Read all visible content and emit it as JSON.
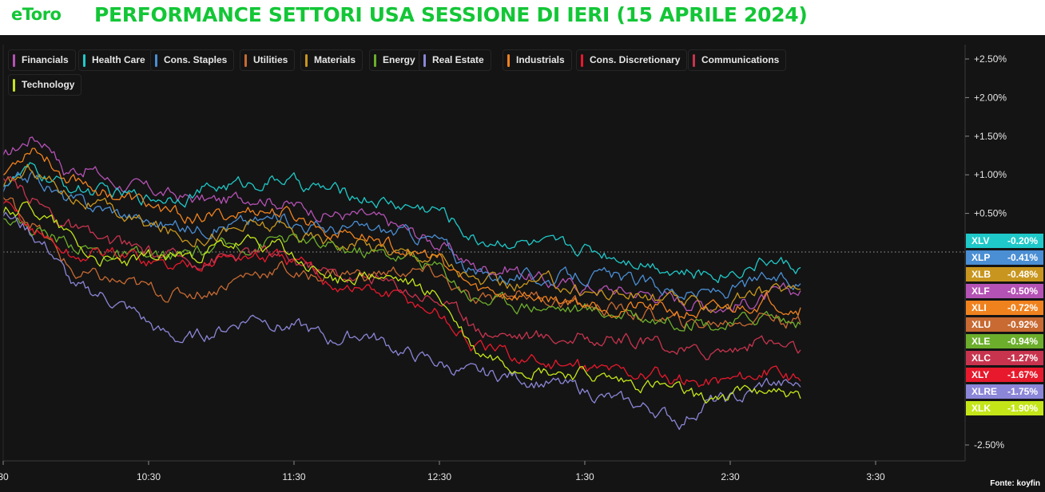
{
  "header": {
    "logo": "eToro",
    "title": "PERFORMANCE SETTORI USA SESSIONE DI IERI (15 APRILE 2024)"
  },
  "source": "Fonte: koyfin",
  "chart_data": {
    "type": "line",
    "title": "PERFORMANCE SETTORI USA SESSIONE DI IERI (15 APRILE 2024)",
    "x_axis": {
      "ticks": [
        "30",
        "10:30",
        "11:30",
        "12:30",
        "1:30",
        "2:30",
        "3:30"
      ],
      "range": [
        "9:30",
        "3:59"
      ]
    },
    "y_axis": {
      "ticks": [
        "+2.50%",
        "+2.00%",
        "+1.50%",
        "+1.00%",
        "+0.50%",
        "-2.50%"
      ],
      "range": [
        -2.7,
        2.6
      ],
      "unit": "%",
      "reference_line": 0
    },
    "legend_placement": "top-left",
    "series": [
      {
        "name": "Financials",
        "ticker": "XLF",
        "color": "#b552b5",
        "end_label": "-0.50%",
        "end": -0.5,
        "keypoints": [
          [
            0,
            1.2
          ],
          [
            12,
            1.5
          ],
          [
            20,
            1.4
          ],
          [
            25,
            1.05
          ],
          [
            35,
            1.1
          ],
          [
            45,
            0.9
          ],
          [
            60,
            0.8
          ],
          [
            75,
            0.7
          ],
          [
            90,
            0.65
          ],
          [
            105,
            0.75
          ],
          [
            120,
            0.6
          ],
          [
            135,
            0.5
          ],
          [
            150,
            0.45
          ],
          [
            165,
            0.3
          ],
          [
            180,
            0.1
          ],
          [
            195,
            -0.2
          ],
          [
            210,
            -0.2
          ],
          [
            225,
            -0.4
          ],
          [
            240,
            -0.45
          ],
          [
            255,
            -0.5
          ],
          [
            270,
            -0.55
          ],
          [
            285,
            -0.65
          ],
          [
            300,
            -0.7
          ],
          [
            315,
            -0.6
          ],
          [
            329,
            -0.5
          ]
        ]
      },
      {
        "name": "Health Care",
        "ticker": "XLV",
        "color": "#1fc9c9",
        "end_label": "-0.20%",
        "end": -0.2,
        "keypoints": [
          [
            0,
            0.9
          ],
          [
            12,
            1.05
          ],
          [
            25,
            0.85
          ],
          [
            35,
            0.8
          ],
          [
            45,
            0.75
          ],
          [
            60,
            0.7
          ],
          [
            75,
            0.75
          ],
          [
            90,
            0.85
          ],
          [
            105,
            0.9
          ],
          [
            115,
            0.95
          ],
          [
            125,
            0.85
          ],
          [
            135,
            0.8
          ],
          [
            150,
            0.7
          ],
          [
            165,
            0.6
          ],
          [
            180,
            0.55
          ],
          [
            195,
            0.15
          ],
          [
            210,
            0.15
          ],
          [
            225,
            0.05
          ],
          [
            240,
            0.05
          ],
          [
            255,
            -0.05
          ],
          [
            270,
            -0.15
          ],
          [
            285,
            -0.3
          ],
          [
            300,
            -0.25
          ],
          [
            315,
            -0.1
          ],
          [
            329,
            -0.2
          ]
        ]
      },
      {
        "name": "Cons. Staples",
        "ticker": "XLP",
        "color": "#4a8ed4",
        "end_label": "-0.41%",
        "end": -0.41,
        "keypoints": [
          [
            0,
            0.8
          ],
          [
            12,
            1.0
          ],
          [
            25,
            0.7
          ],
          [
            35,
            0.6
          ],
          [
            45,
            0.55
          ],
          [
            60,
            0.4
          ],
          [
            75,
            0.3
          ],
          [
            90,
            0.35
          ],
          [
            105,
            0.4
          ],
          [
            115,
            0.45
          ],
          [
            125,
            0.35
          ],
          [
            135,
            0.3
          ],
          [
            150,
            0.3
          ],
          [
            165,
            0.25
          ],
          [
            180,
            0.15
          ],
          [
            195,
            -0.3
          ],
          [
            210,
            -0.3
          ],
          [
            225,
            -0.35
          ],
          [
            240,
            -0.3
          ],
          [
            255,
            -0.35
          ],
          [
            270,
            -0.45
          ],
          [
            285,
            -0.55
          ],
          [
            300,
            -0.5
          ],
          [
            315,
            -0.35
          ],
          [
            329,
            -0.41
          ]
        ]
      },
      {
        "name": "Utilities",
        "ticker": "XLU",
        "color": "#c86a32",
        "end_label": "-0.92%",
        "end": -0.92,
        "keypoints": [
          [
            0,
            0.7
          ],
          [
            12,
            0.4
          ],
          [
            22,
            0.0
          ],
          [
            30,
            -0.3
          ],
          [
            40,
            -0.35
          ],
          [
            55,
            -0.45
          ],
          [
            70,
            -0.55
          ],
          [
            85,
            -0.5
          ],
          [
            100,
            -0.3
          ],
          [
            115,
            -0.2
          ],
          [
            125,
            -0.35
          ],
          [
            135,
            -0.25
          ],
          [
            150,
            -0.3
          ],
          [
            165,
            -0.25
          ],
          [
            180,
            -0.3
          ],
          [
            195,
            -0.7
          ],
          [
            210,
            -0.5
          ],
          [
            225,
            -0.6
          ],
          [
            240,
            -0.7
          ],
          [
            255,
            -0.75
          ],
          [
            270,
            -0.85
          ],
          [
            285,
            -0.95
          ],
          [
            300,
            -0.9
          ],
          [
            315,
            -0.8
          ],
          [
            329,
            -0.92
          ]
        ]
      },
      {
        "name": "Materials",
        "ticker": "XLB",
        "color": "#c8961e",
        "end_label": "-0.48%",
        "end": -0.48,
        "keypoints": [
          [
            0,
            0.8
          ],
          [
            12,
            1.1
          ],
          [
            25,
            0.8
          ],
          [
            35,
            0.65
          ],
          [
            45,
            0.5
          ],
          [
            60,
            0.35
          ],
          [
            75,
            0.2
          ],
          [
            90,
            0.25
          ],
          [
            105,
            0.35
          ],
          [
            115,
            0.3
          ],
          [
            125,
            0.2
          ],
          [
            135,
            0.15
          ],
          [
            150,
            0.1
          ],
          [
            165,
            0.0
          ],
          [
            180,
            -0.05
          ],
          [
            195,
            -0.4
          ],
          [
            210,
            -0.45
          ],
          [
            225,
            -0.4
          ],
          [
            240,
            -0.5
          ],
          [
            255,
            -0.55
          ],
          [
            270,
            -0.6
          ],
          [
            285,
            -0.7
          ],
          [
            300,
            -0.65
          ],
          [
            315,
            -0.5
          ],
          [
            329,
            -0.48
          ]
        ]
      },
      {
        "name": "Energy",
        "ticker": "XLE",
        "color": "#6cae2c",
        "end_label": "-0.94%",
        "end": -0.94,
        "keypoints": [
          [
            0,
            0.5
          ],
          [
            12,
            0.3
          ],
          [
            25,
            0.15
          ],
          [
            35,
            0.05
          ],
          [
            45,
            -0.05
          ],
          [
            60,
            -0.1
          ],
          [
            75,
            -0.05
          ],
          [
            90,
            0.05
          ],
          [
            105,
            0.1
          ],
          [
            115,
            0.2
          ],
          [
            125,
            0.1
          ],
          [
            135,
            0.05
          ],
          [
            150,
            0.0
          ],
          [
            165,
            -0.05
          ],
          [
            180,
            -0.2
          ],
          [
            195,
            -0.6
          ],
          [
            210,
            -0.65
          ],
          [
            225,
            -0.7
          ],
          [
            240,
            -0.75
          ],
          [
            255,
            -0.8
          ],
          [
            270,
            -0.85
          ],
          [
            285,
            -0.9
          ],
          [
            300,
            -0.95
          ],
          [
            315,
            -0.8
          ],
          [
            329,
            -0.94
          ]
        ]
      },
      {
        "name": "Real Estate",
        "ticker": "XLRE",
        "color": "#8b86d8",
        "end_label": "-1.75%",
        "end": -1.75,
        "keypoints": [
          [
            0,
            0.5
          ],
          [
            10,
            0.3
          ],
          [
            20,
            0.0
          ],
          [
            30,
            -0.5
          ],
          [
            40,
            -0.55
          ],
          [
            55,
            -0.8
          ],
          [
            65,
            -1.05
          ],
          [
            75,
            -1.15
          ],
          [
            90,
            -1.0
          ],
          [
            105,
            -0.8
          ],
          [
            115,
            -0.95
          ],
          [
            125,
            -1.0
          ],
          [
            135,
            -1.15
          ],
          [
            150,
            -1.05
          ],
          [
            165,
            -1.3
          ],
          [
            180,
            -1.45
          ],
          [
            195,
            -1.6
          ],
          [
            210,
            -1.6
          ],
          [
            225,
            -1.7
          ],
          [
            240,
            -1.8
          ],
          [
            255,
            -1.95
          ],
          [
            270,
            -2.05
          ],
          [
            280,
            -2.2
          ],
          [
            290,
            -1.95
          ],
          [
            305,
            -1.9
          ],
          [
            315,
            -1.7
          ],
          [
            329,
            -1.75
          ]
        ]
      },
      {
        "name": "Industrials",
        "ticker": "XLI",
        "color": "#f0821e",
        "end_label": "-0.72%",
        "end": -0.72,
        "keypoints": [
          [
            0,
            1.0
          ],
          [
            12,
            1.4
          ],
          [
            25,
            1.0
          ],
          [
            35,
            0.9
          ],
          [
            45,
            0.75
          ],
          [
            60,
            0.6
          ],
          [
            75,
            0.45
          ],
          [
            90,
            0.45
          ],
          [
            105,
            0.55
          ],
          [
            115,
            0.5
          ],
          [
            125,
            0.4
          ],
          [
            135,
            0.3
          ],
          [
            150,
            0.2
          ],
          [
            165,
            0.05
          ],
          [
            180,
            -0.1
          ],
          [
            195,
            -0.5
          ],
          [
            210,
            -0.55
          ],
          [
            225,
            -0.6
          ],
          [
            240,
            -0.65
          ],
          [
            255,
            -0.7
          ],
          [
            270,
            -0.75
          ],
          [
            285,
            -0.8
          ],
          [
            300,
            -0.75
          ],
          [
            315,
            -0.6
          ],
          [
            329,
            -0.72
          ]
        ]
      },
      {
        "name": "Cons. Discretionary",
        "ticker": "XLY",
        "color": "#e8192c",
        "end_label": "-1.67%",
        "end": -1.67,
        "keypoints": [
          [
            0,
            0.6
          ],
          [
            12,
            0.3
          ],
          [
            22,
            0.1
          ],
          [
            30,
            -0.1
          ],
          [
            40,
            0.0
          ],
          [
            55,
            -0.05
          ],
          [
            70,
            -0.2
          ],
          [
            85,
            -0.1
          ],
          [
            100,
            -0.05
          ],
          [
            115,
            -0.1
          ],
          [
            125,
            -0.2
          ],
          [
            135,
            -0.4
          ],
          [
            150,
            -0.5
          ],
          [
            165,
            -0.6
          ],
          [
            180,
            -0.8
          ],
          [
            195,
            -1.25
          ],
          [
            210,
            -1.35
          ],
          [
            225,
            -1.45
          ],
          [
            240,
            -1.5
          ],
          [
            255,
            -1.55
          ],
          [
            270,
            -1.6
          ],
          [
            285,
            -1.7
          ],
          [
            300,
            -1.65
          ],
          [
            315,
            -1.55
          ],
          [
            329,
            -1.67
          ]
        ]
      },
      {
        "name": "Communications",
        "ticker": "XLC",
        "color": "#c8344e",
        "end_label": "-1.27%",
        "end": -1.27,
        "keypoints": [
          [
            0,
            0.9
          ],
          [
            12,
            0.7
          ],
          [
            25,
            0.4
          ],
          [
            35,
            0.2
          ],
          [
            45,
            0.1
          ],
          [
            60,
            0.0
          ],
          [
            75,
            -0.1
          ],
          [
            90,
            -0.05
          ],
          [
            105,
            0.0
          ],
          [
            115,
            -0.05
          ],
          [
            125,
            -0.15
          ],
          [
            135,
            -0.25
          ],
          [
            150,
            -0.35
          ],
          [
            165,
            -0.45
          ],
          [
            180,
            -0.6
          ],
          [
            195,
            -1.0
          ],
          [
            210,
            -1.05
          ],
          [
            225,
            -1.1
          ],
          [
            240,
            -1.1
          ],
          [
            255,
            -1.15
          ],
          [
            270,
            -1.2
          ],
          [
            285,
            -1.3
          ],
          [
            300,
            -1.25
          ],
          [
            315,
            -1.15
          ],
          [
            329,
            -1.27
          ]
        ]
      },
      {
        "name": "Technology",
        "ticker": "XLK",
        "color": "#c4e619",
        "end_label": "-1.90%",
        "end": -1.9,
        "keypoints": [
          [
            0,
            0.55
          ],
          [
            12,
            0.6
          ],
          [
            25,
            0.3
          ],
          [
            35,
            0.0
          ],
          [
            45,
            -0.15
          ],
          [
            60,
            -0.1
          ],
          [
            75,
            -0.05
          ],
          [
            90,
            0.05
          ],
          [
            105,
            0.1
          ],
          [
            115,
            0.05
          ],
          [
            125,
            -0.2
          ],
          [
            135,
            -0.35
          ],
          [
            150,
            -0.3
          ],
          [
            165,
            -0.4
          ],
          [
            180,
            -0.6
          ],
          [
            195,
            -1.3
          ],
          [
            210,
            -1.45
          ],
          [
            225,
            -1.55
          ],
          [
            240,
            -1.6
          ],
          [
            255,
            -1.7
          ],
          [
            270,
            -1.75
          ],
          [
            285,
            -1.9
          ],
          [
            300,
            -1.85
          ],
          [
            315,
            -1.75
          ],
          [
            329,
            -1.9
          ]
        ]
      }
    ],
    "end_label_order": [
      "XLV",
      "XLP",
      "XLB",
      "XLF",
      "XLI",
      "XLU",
      "XLE",
      "XLC",
      "XLY",
      "XLRE",
      "XLK"
    ]
  }
}
